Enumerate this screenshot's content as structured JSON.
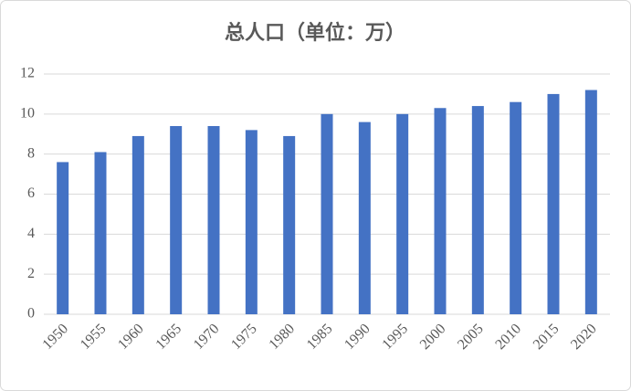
{
  "chart_data": {
    "type": "bar",
    "title": "总人口（单位：万）",
    "categories": [
      "1950",
      "1955",
      "1960",
      "1965",
      "1970",
      "1975",
      "1980",
      "1985",
      "1990",
      "1995",
      "2000",
      "2005",
      "2010",
      "2015",
      "2020"
    ],
    "values": [
      7.6,
      8.1,
      8.9,
      9.4,
      9.4,
      9.2,
      8.9,
      10.0,
      9.6,
      10.0,
      10.3,
      10.4,
      10.6,
      11.0,
      11.2
    ],
    "color": "#4472c4",
    "ylim": [
      0,
      12
    ],
    "yticks": [
      0,
      2,
      4,
      6,
      8,
      10,
      12
    ],
    "grid": true
  }
}
